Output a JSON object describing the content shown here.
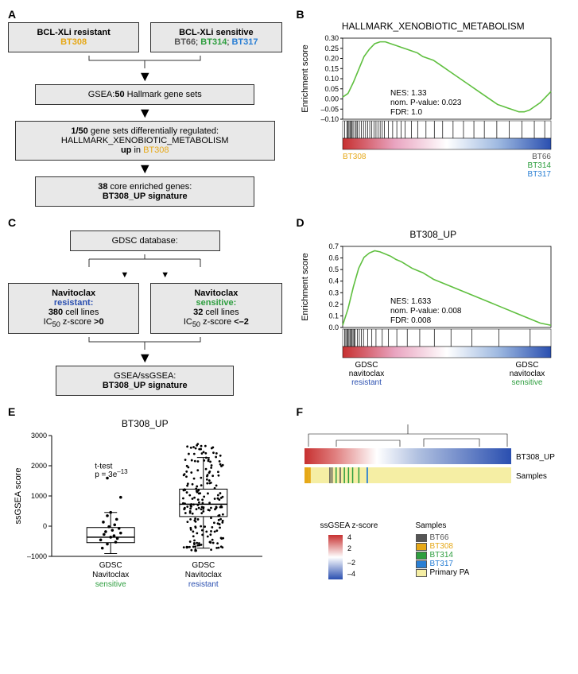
{
  "palette": {
    "bt308": "#e6a817",
    "bt66": "#555555",
    "bt314": "#2e9e3f",
    "bt317": "#2a7fd4",
    "primaryPA": "#f5eea4",
    "box_bg": "#e8e8e8",
    "box_border": "#333333",
    "gsea_line": "#5fbf3f",
    "rank_red": "#c73030",
    "rank_pink": "#e9a4c0",
    "rank_white": "#ffffff",
    "rank_ltblue": "#9db8e0",
    "rank_blue": "#2a4fb0",
    "navit_res": "#2a4fb0",
    "navit_sens": "#2e9e3f",
    "heat_pos": "#c73030",
    "heat_zero": "#ffffff",
    "heat_neg": "#2a4fb0"
  },
  "A": {
    "left_title": "BCL-XLi resistant",
    "left_sample": "BT308",
    "right_title": "BCL-XLi sensitive",
    "right_s1": "BT66",
    "right_s2": "BT314",
    "right_s3": "BT317",
    "step1_pre": "GSEA:",
    "step1_bold": "50",
    "step1_post": " Hallmark gene sets",
    "step2_l1_pre": "1/50",
    "step2_l1_post": " gene sets differentially regulated:",
    "step2_l2": "HALLMARK_XENOBIOTIC_METABOLISM",
    "step2_l3_pre": "up",
    "step2_l3_post": " in ",
    "step2_l3_sample": "BT308",
    "step3_pre": "38",
    "step3_post": " core enriched genes:",
    "step3_l2": "BT308_UP signature"
  },
  "B": {
    "title": "HALLMARK_XENOBIOTIC_METABOLISM",
    "ylab": "Enrichment score",
    "yticks": [
      "0.30",
      "0.25",
      "0.20",
      "0.15",
      "0.10",
      "0.05",
      "0.00",
      "–0.05",
      "–0.10"
    ],
    "ylim": [
      -0.12,
      0.32
    ],
    "stats_l1": "NES: 1.33",
    "stats_l2": "nom. P-value: 0.023",
    "stats_l3": "FDR: 1.0",
    "left_lab": "BT308",
    "right_l1": "BT66",
    "right_l2": "BT314",
    "right_l3": "BT317",
    "curve": [
      0,
      0.02,
      0.08,
      0.15,
      0.22,
      0.26,
      0.29,
      0.3,
      0.3,
      0.29,
      0.28,
      0.27,
      0.26,
      0.25,
      0.24,
      0.22,
      0.21,
      0.2,
      0.18,
      0.16,
      0.14,
      0.12,
      0.1,
      0.08,
      0.06,
      0.04,
      0.02,
      0.0,
      -0.02,
      -0.04,
      -0.05,
      -0.06,
      -0.07,
      -0.08,
      -0.08,
      -0.07,
      -0.05,
      -0.03,
      0.0,
      0.03
    ],
    "hits": [
      0.01,
      0.02,
      0.025,
      0.03,
      0.035,
      0.04,
      0.045,
      0.05,
      0.06,
      0.065,
      0.07,
      0.08,
      0.09,
      0.1,
      0.11,
      0.12,
      0.13,
      0.14,
      0.15,
      0.16,
      0.17,
      0.18,
      0.19,
      0.2,
      0.22,
      0.24,
      0.26,
      0.28,
      0.3,
      0.33,
      0.36,
      0.4,
      0.44,
      0.48,
      0.53,
      0.58,
      0.63,
      0.68,
      0.74,
      0.8,
      0.86,
      0.92,
      0.97
    ]
  },
  "C": {
    "top": "GDSC database:",
    "left_t": "Navitoclax",
    "left_res": "resistant:",
    "left_l2_bold": "380",
    "left_l2_post": " cell lines",
    "left_l3_pre": "IC",
    "left_l3_sub": "50",
    "left_l3_mid": " z-score ",
    "left_l3_bold": ">0",
    "right_t": "Navitoclax",
    "right_sens": "sensitive:",
    "right_l2_bold": "32",
    "right_l2_post": " cell lines",
    "right_l3_pre": "IC",
    "right_l3_sub": "50",
    "right_l3_mid": " z-score ",
    "right_l3_bold": "<–2",
    "bottom_l1": "GSEA/ssGSEA:",
    "bottom_l2": "BT308_UP signature"
  },
  "D": {
    "title": "BT308_UP",
    "ylab": "Enrichment score",
    "yticks": [
      "0.7",
      "0.6",
      "0.5",
      "0.4",
      "0.3",
      "0.2",
      "0.1",
      "0.0"
    ],
    "ylim": [
      -0.02,
      0.72
    ],
    "stats_l1": "NES: 1.633",
    "stats_l2": "nom. P-value: 0.008",
    "stats_l3": "FDR: 0.008",
    "left_l1": "GDSC",
    "left_l2": "navitoclax",
    "left_l3": "resistant",
    "right_l1": "GDSC",
    "right_l2": "navitoclax",
    "right_l3": "sensitive",
    "curve": [
      0,
      0.15,
      0.35,
      0.52,
      0.62,
      0.66,
      0.68,
      0.67,
      0.65,
      0.63,
      0.6,
      0.58,
      0.55,
      0.52,
      0.5,
      0.48,
      0.45,
      0.42,
      0.4,
      0.38,
      0.36,
      0.34,
      0.32,
      0.3,
      0.28,
      0.26,
      0.24,
      0.22,
      0.2,
      0.18,
      0.16,
      0.14,
      0.12,
      0.1,
      0.08,
      0.06,
      0.04,
      0.02,
      0.01,
      0.0
    ],
    "hits": [
      0.01,
      0.015,
      0.02,
      0.025,
      0.03,
      0.035,
      0.04,
      0.045,
      0.05,
      0.055,
      0.06,
      0.07,
      0.08,
      0.09,
      0.1,
      0.12,
      0.14,
      0.16,
      0.19,
      0.22,
      0.26,
      0.31,
      0.37,
      0.44,
      0.52,
      0.62,
      0.75,
      0.9
    ]
  },
  "E": {
    "title": "BT308_UP",
    "ylab": "ssGSEA score",
    "xlab1_l1": "GDSC",
    "xlab1_l2": "Navitoclax",
    "xlab1_l3": "sensitive",
    "xlab2_l1": "GDSC",
    "xlab2_l2": "Navitoclax",
    "xlab2_l3": "resistant",
    "yticks": [
      "3000",
      "2000",
      "1000",
      "0",
      "–1000"
    ],
    "ylim": [
      -1200,
      3200
    ],
    "ttest_l1": "t-test",
    "ttest_l2_pre": "p = 3e",
    "ttest_l2_sup": "–13",
    "sens": {
      "median": -500,
      "q1": -700,
      "q3": -150,
      "lo": -1100,
      "hi": 400,
      "points": [
        [
          -0.25,
          -900
        ],
        [
          -0.1,
          -750
        ],
        [
          0.15,
          -680
        ],
        [
          -0.3,
          -600
        ],
        [
          0.2,
          -550
        ],
        [
          0,
          -500
        ],
        [
          0.1,
          -450
        ],
        [
          -0.2,
          -400
        ],
        [
          0.3,
          -350
        ],
        [
          -0.15,
          -300
        ],
        [
          0.05,
          -250
        ],
        [
          0.25,
          -180
        ],
        [
          -0.05,
          -120
        ],
        [
          0.12,
          -50
        ],
        [
          -0.22,
          50
        ],
        [
          0.18,
          150
        ],
        [
          -0.1,
          280
        ],
        [
          0,
          400
        ],
        [
          0.3,
          950
        ],
        [
          -0.1,
          1650
        ]
      ]
    },
    "res": {
      "median": 700,
      "q1": 250,
      "q3": 1250,
      "lo": -900,
      "hi": 2400,
      "n_points": 200,
      "range": [
        -1000,
        2900
      ]
    }
  },
  "F": {
    "row1_label": "BT308_UP",
    "row2_label": "Samples",
    "leg_zscore_title": "ssGSEA z-score",
    "leg_zscore_ticks": [
      "4",
      "2",
      "–2",
      "–4"
    ],
    "leg_samples_title": "Samples",
    "leg_items": [
      {
        "label": "BT66",
        "color": "#555555"
      },
      {
        "label": "BT308",
        "color": "#e6a817"
      },
      {
        "label": "BT314",
        "color": "#2e9e3f"
      },
      {
        "label": "BT317",
        "color": "#2a7fd4"
      },
      {
        "label": "Primary PA",
        "color": "#f5eea4"
      }
    ],
    "n_cols": 160,
    "sample_bars": [
      {
        "pos": 0.0,
        "w": 0.02,
        "key": "bt308"
      },
      {
        "pos": 0.02,
        "w": 0.01,
        "key": "bt308"
      },
      {
        "pos": 0.12,
        "w": 0.005,
        "key": "bt66"
      },
      {
        "pos": 0.13,
        "w": 0.005,
        "key": "bt66"
      },
      {
        "pos": 0.15,
        "w": 0.005,
        "key": "bt314"
      },
      {
        "pos": 0.17,
        "w": 0.005,
        "key": "bt66"
      },
      {
        "pos": 0.19,
        "w": 0.005,
        "key": "bt314"
      },
      {
        "pos": 0.21,
        "w": 0.005,
        "key": "bt314"
      },
      {
        "pos": 0.23,
        "w": 0.005,
        "key": "bt314"
      },
      {
        "pos": 0.26,
        "w": 0.005,
        "key": "bt314"
      },
      {
        "pos": 0.3,
        "w": 0.007,
        "key": "bt317"
      }
    ]
  }
}
